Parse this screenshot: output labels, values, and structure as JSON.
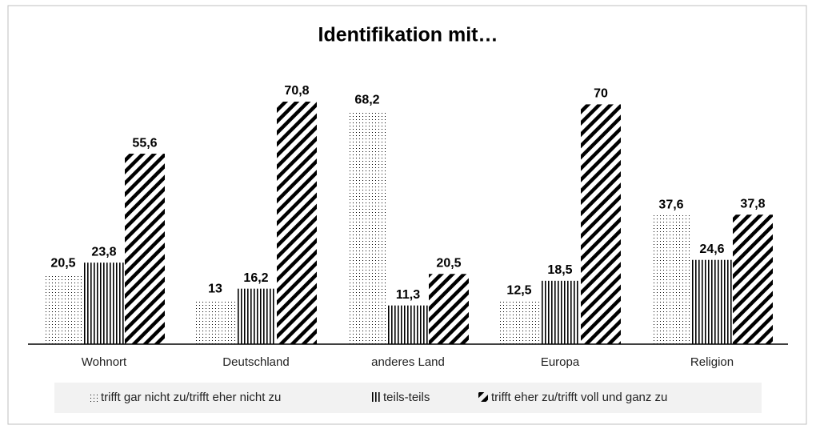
{
  "chart_data": {
    "type": "bar",
    "title": "Identifikation mit…",
    "categories": [
      "Wohnort",
      "Deutschland",
      "anderes Land",
      "Europa",
      "Religion"
    ],
    "series": [
      {
        "name": "trifft gar nicht zu/trifft eher nicht zu",
        "color": "#000000",
        "values": [
          20.5,
          13,
          68.2,
          12.5,
          37.6
        ],
        "value_labels": [
          "20,5",
          "13",
          "68,2",
          "12,5",
          "37,6"
        ]
      },
      {
        "name": "teils-teils",
        "color": "#000000",
        "values": [
          23.8,
          16.2,
          11.3,
          18.5,
          24.6
        ],
        "value_labels": [
          "23,8",
          "16,2",
          "11,3",
          "18,5",
          "24,6"
        ]
      },
      {
        "name": "trifft eher zu/trifft voll und ganz zu",
        "color": "#000000",
        "values": [
          55.6,
          70.8,
          20.5,
          70,
          37.8
        ],
        "value_labels": [
          "55,6",
          "70,8",
          "20,5",
          "70",
          "37,8"
        ]
      }
    ],
    "legend": "bottom"
  }
}
